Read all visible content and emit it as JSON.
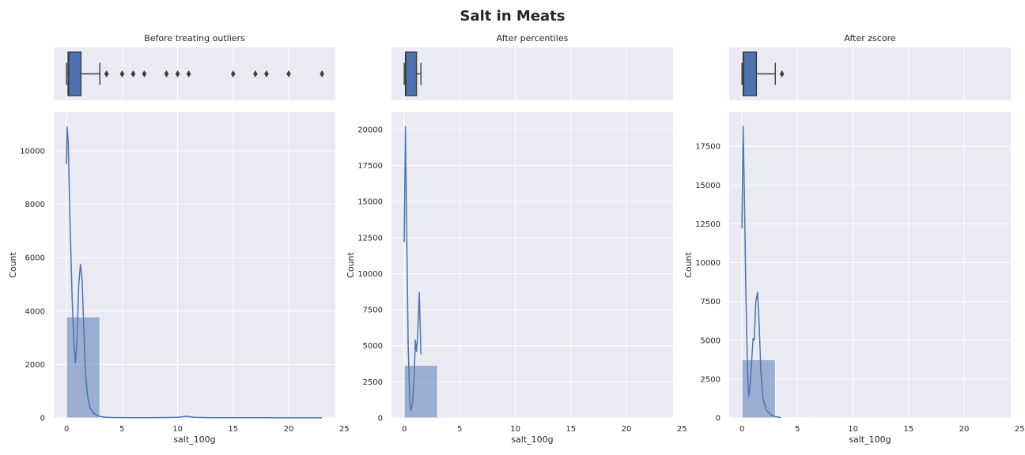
{
  "figure": {
    "title": "Salt in Meats"
  },
  "colors": {
    "bg": "#eaeaf2",
    "grid": "#ffffff",
    "box": "#4c72b0",
    "box_edge": "#3d3d3d",
    "hist_fill": "#4c72b0",
    "kde": "#4c72b0"
  },
  "chart_data": [
    {
      "type": "bar",
      "title": "Before treating outliers",
      "xlabel": "salt_100g",
      "ylabel": "Count",
      "xlim": [
        -1.15,
        24.2
      ],
      "ylim": [
        0,
        11450
      ],
      "xticks": [
        0,
        5,
        10,
        15,
        20,
        25
      ],
      "yticks": [
        0,
        2000,
        4000,
        6000,
        8000,
        10000
      ],
      "bins": [
        {
          "x0": 0,
          "x1": 3,
          "count": 3780
        },
        {
          "x0": 3,
          "x1": 6,
          "count": 30
        },
        {
          "x0": 6,
          "x1": 9,
          "count": 8
        },
        {
          "x0": 9,
          "x1": 12,
          "count": 40
        },
        {
          "x0": 12,
          "x1": 15,
          "count": 4
        },
        {
          "x0": 15,
          "x1": 18,
          "count": 5
        },
        {
          "x0": 18,
          "x1": 21,
          "count": 8
        },
        {
          "x0": 21,
          "x1": 24,
          "count": 3
        }
      ],
      "kde": [
        [
          0,
          9500
        ],
        [
          0.05,
          10900
        ],
        [
          0.15,
          10300
        ],
        [
          0.3,
          7500
        ],
        [
          0.5,
          4500
        ],
        [
          0.7,
          2500
        ],
        [
          0.8,
          2050
        ],
        [
          0.95,
          3000
        ],
        [
          1.1,
          5000
        ],
        [
          1.25,
          5750
        ],
        [
          1.4,
          5200
        ],
        [
          1.55,
          3400
        ],
        [
          1.7,
          1700
        ],
        [
          1.9,
          800
        ],
        [
          2.1,
          400
        ],
        [
          2.4,
          180
        ],
        [
          2.8,
          80
        ],
        [
          3.3,
          30
        ],
        [
          4,
          15
        ],
        [
          6,
          8
        ],
        [
          8,
          10
        ],
        [
          10,
          25
        ],
        [
          10.8,
          60
        ],
        [
          11.5,
          20
        ],
        [
          13,
          5
        ],
        [
          16,
          5
        ],
        [
          18,
          10
        ],
        [
          19,
          4
        ],
        [
          23,
          2
        ]
      ],
      "box": {
        "whisker_low": 0,
        "q1": 0.13,
        "median": 0.2,
        "q3": 1.3,
        "whisker_high": 3.0,
        "outliers": [
          3.6,
          5,
          6,
          7,
          9,
          10,
          11,
          15,
          17,
          18,
          20,
          23
        ]
      }
    },
    {
      "type": "bar",
      "title": "After percentiles",
      "xlabel": "salt_100g",
      "ylabel": "Count",
      "xlim": [
        -1.15,
        24.2
      ],
      "ylim": [
        0,
        21200
      ],
      "xticks": [
        0,
        5,
        10,
        15,
        20,
        25
      ],
      "yticks": [
        0,
        2500,
        5000,
        7500,
        10000,
        12500,
        15000,
        17500,
        20000
      ],
      "bins": [
        {
          "x0": 0,
          "x1": 3,
          "count": 3650
        }
      ],
      "kde": [
        [
          0,
          12200
        ],
        [
          0.1,
          20200
        ],
        [
          0.2,
          14000
        ],
        [
          0.35,
          5000
        ],
        [
          0.5,
          1000
        ],
        [
          0.6,
          520
        ],
        [
          0.75,
          1100
        ],
        [
          0.9,
          3000
        ],
        [
          1.0,
          5400
        ],
        [
          1.1,
          4600
        ],
        [
          1.2,
          5600
        ],
        [
          1.35,
          8700
        ],
        [
          1.5,
          4400
        ]
      ],
      "box": {
        "whisker_low": 0,
        "q1": 0.1,
        "median": 0.15,
        "q3": 1.1,
        "whisker_high": 1.5,
        "outliers": []
      }
    },
    {
      "type": "bar",
      "title": "After zscore",
      "xlabel": "salt_100g",
      "ylabel": "Count",
      "xlim": [
        -1.15,
        24.2
      ],
      "ylim": [
        0,
        19700
      ],
      "xticks": [
        0,
        5,
        10,
        15,
        20,
        25
      ],
      "yticks": [
        0,
        2500,
        5000,
        7500,
        10000,
        12500,
        15000,
        17500
      ],
      "bins": [
        {
          "x0": 0,
          "x1": 3,
          "count": 3750
        },
        {
          "x0": 3,
          "x1": 6,
          "count": 40
        }
      ],
      "kde": [
        [
          0,
          12200
        ],
        [
          0.1,
          18800
        ],
        [
          0.2,
          15000
        ],
        [
          0.35,
          8000
        ],
        [
          0.5,
          3000
        ],
        [
          0.6,
          1400
        ],
        [
          0.75,
          2200
        ],
        [
          0.9,
          4000
        ],
        [
          1.0,
          5100
        ],
        [
          1.1,
          5000
        ],
        [
          1.25,
          7500
        ],
        [
          1.4,
          8100
        ],
        [
          1.55,
          6000
        ],
        [
          1.7,
          3000
        ],
        [
          1.9,
          1200
        ],
        [
          2.2,
          500
        ],
        [
          2.6,
          200
        ],
        [
          3.0,
          80
        ],
        [
          3.5,
          20
        ]
      ],
      "box": {
        "whisker_low": 0,
        "q1": 0.1,
        "median": 0.15,
        "q3": 1.3,
        "whisker_high": 3.0,
        "outliers": [
          3.6
        ]
      }
    }
  ]
}
